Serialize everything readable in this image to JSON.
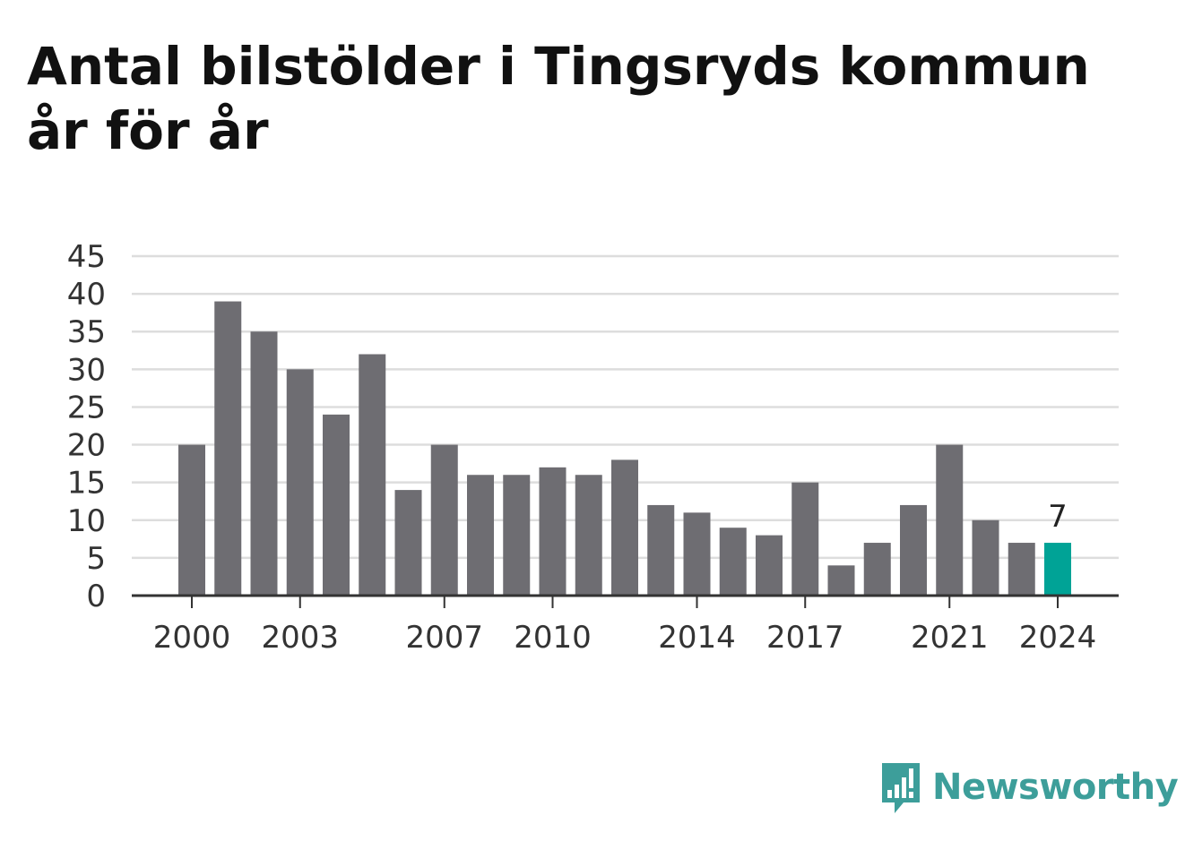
{
  "title": "Antal bilstölder i Tingsryds kommun år för år",
  "brand": {
    "name": "Newsworthy",
    "color": "#3d9e9a"
  },
  "colors": {
    "bar": "#6e6d72",
    "highlight": "#00a396",
    "grid": "#dddddd",
    "axis": "#333333"
  },
  "chart_data": {
    "type": "bar",
    "title": "Antal bilstölder i Tingsryds kommun år för år",
    "xlabel": "",
    "ylabel": "",
    "ylim": [
      0,
      45
    ],
    "yticks": [
      0,
      5,
      10,
      15,
      20,
      25,
      30,
      35,
      40,
      45
    ],
    "xtick_labels": [
      "2000",
      "2003",
      "2007",
      "2010",
      "2014",
      "2017",
      "2021",
      "2024"
    ],
    "grid": true,
    "categories": [
      "2000",
      "2001",
      "2002",
      "2003",
      "2004",
      "2005",
      "2006",
      "2007",
      "2008",
      "2009",
      "2010",
      "2011",
      "2012",
      "2013",
      "2014",
      "2015",
      "2016",
      "2017",
      "2018",
      "2019",
      "2020",
      "2021",
      "2022",
      "2023",
      "2024"
    ],
    "values": [
      20,
      39,
      35,
      30,
      24,
      32,
      14,
      20,
      16,
      16,
      17,
      16,
      18,
      12,
      11,
      9,
      8,
      15,
      4,
      7,
      12,
      20,
      10,
      7,
      7
    ],
    "highlight": {
      "category": "2024",
      "label": "7"
    }
  }
}
